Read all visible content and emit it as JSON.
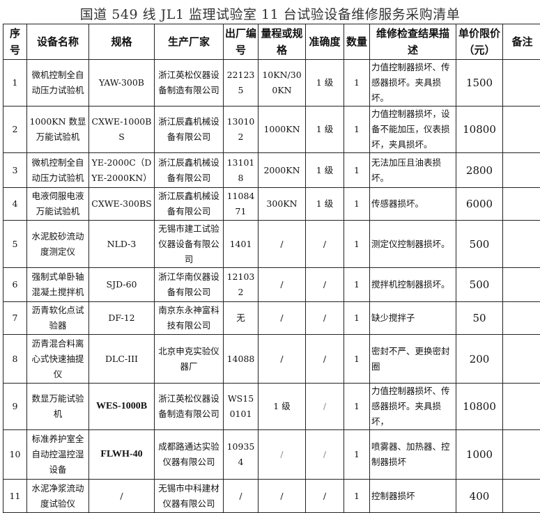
{
  "title": "国道 549 线 JL1 监理试验室 11 台试验设备维修服务采购清单",
  "headers": [
    "序号",
    "设备名称",
    "规格",
    "生产厂家",
    "出厂编号",
    "量程或规格",
    "准确度",
    "数量",
    "维修检查结果描述",
    "单价限价（元）",
    "备注"
  ],
  "rows": [
    {
      "no": "1",
      "name": "微机控制全自动压力试验机",
      "spec": "YAW-300B",
      "maker": "浙江英松仪器设备制造有限公司",
      "serial": "221235",
      "range": "10KN/300KN",
      "accuracy": "1 级",
      "qty": "1",
      "desc": "力值控制器损坏、传感器损坏。夹具损坏。",
      "price": "1500",
      "note": ""
    },
    {
      "no": "2",
      "name": "1000KN 数显万能试验机",
      "spec": "CXWE-1000BS",
      "maker": "浙江辰鑫机械设备有限公司",
      "serial": "130102",
      "range": "1000KN",
      "accuracy": "1 级",
      "qty": "1",
      "desc": "力值控制器损坏，设备不能加压，仪表损坏，夹具损坏。",
      "price": "10800",
      "note": ""
    },
    {
      "no": "3",
      "name": "微机控制全自动压力试验机",
      "spec": "YE-2000C（DYE-2000KN）",
      "maker": "浙江辰鑫机械设备有限公司",
      "serial": "131018",
      "range": "2000KN",
      "accuracy": "1 级",
      "qty": "1",
      "desc": "无法加压且油表损坏。",
      "price": "2800",
      "note": ""
    },
    {
      "no": "4",
      "name": "电液伺服电液万能试验机",
      "spec": "CXWE-300BS",
      "maker": "浙江辰鑫机械设备有限公司",
      "serial": "1108471",
      "range": "300KN",
      "accuracy": "1 级",
      "qty": "1",
      "desc": "传感器损坏。",
      "price": "6000",
      "note": ""
    },
    {
      "no": "5",
      "name": "水泥胶砂流动度测定仪",
      "spec": "NLD-3",
      "maker": "无锡市建工试验仪器设备有限公司",
      "serial": "1401",
      "range": "/",
      "accuracy": "/",
      "qty": "1",
      "desc": "测定仪控制器损坏。",
      "price": "500",
      "note": ""
    },
    {
      "no": "6",
      "name": "强制式单卧轴混凝土搅拌机",
      "spec": "SJD-60",
      "maker": "浙江华南仪器设备有限公司",
      "serial": "121032",
      "range": "/",
      "accuracy": "/",
      "qty": "1",
      "desc": "搅拌机控制器损坏。",
      "price": "500",
      "note": ""
    },
    {
      "no": "7",
      "name": "沥青软化点试验器",
      "spec": "DF-12",
      "maker": "南京东永神富科技有限公司",
      "serial": "无",
      "range": "/",
      "accuracy": "/",
      "qty": "1",
      "desc": "缺少搅拌子",
      "price": "50",
      "note": ""
    },
    {
      "no": "8",
      "name": "沥青混合料离心式快速抽提仪",
      "spec": "DLC-III",
      "maker": "北京申克实验仪器厂",
      "serial": "14088",
      "range": "/",
      "accuracy": "/",
      "qty": "1",
      "desc": "密封不严、更换密封圈",
      "price": "200",
      "note": ""
    },
    {
      "no": "9",
      "name": "数显万能试验机",
      "spec": "WES-1000B",
      "maker": "浙江英松仪器设备制造有限公司",
      "serial": "WS150101",
      "range": "1 级",
      "accuracy": "/",
      "qty": "1",
      "desc": "力值控制器损坏、传感器损坏。夹具损坏，",
      "price": "10800",
      "note": ""
    },
    {
      "no": "10",
      "name": "标准养护室全自动控温控湿设备",
      "spec": "FLWH-40",
      "maker": "成都路通达实验仪器有限公司",
      "serial": "109354",
      "range": "/",
      "accuracy": "/",
      "qty": "1",
      "desc": "喷雾器、加热器、控制器损坏",
      "price": "1000",
      "note": ""
    },
    {
      "no": "11",
      "name": "水泥净浆流动度试验仪",
      "spec": "/",
      "maker": "无锡市中科建材仪器有限公司",
      "serial": "/",
      "range": "/",
      "accuracy": "/",
      "qty": "1",
      "desc": "控制器损坏",
      "price": "400",
      "note": ""
    }
  ]
}
